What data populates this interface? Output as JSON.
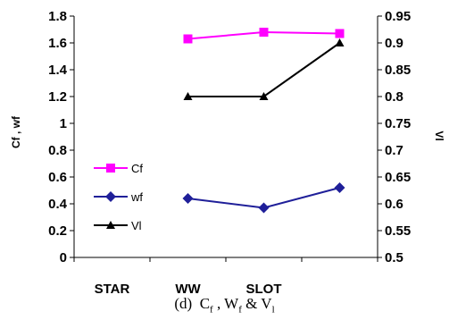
{
  "chart_data": {
    "type": "line",
    "categories": [
      "STAR",
      "WW",
      "SLOT",
      ""
    ],
    "y_left": {
      "label": "Cf , wf",
      "ylim": [
        0,
        1.8
      ],
      "ticks": [
        "0",
        "0.2",
        "0.4",
        "0.6",
        "0.8",
        "1",
        "1.2",
        "1.4",
        "1.6",
        "1.8"
      ]
    },
    "y_right": {
      "label": "Vl",
      "ylim": [
        0.5,
        0.95
      ],
      "ticks": [
        "0.5",
        "0.55",
        "0.6",
        "0.65",
        "0.7",
        "0.75",
        "0.8",
        "0.85",
        "0.9",
        "0.95"
      ]
    },
    "series": [
      {
        "name": "Cf",
        "axis": "left",
        "color": "#ff00ff",
        "marker": "square",
        "values": [
          null,
          1.63,
          1.68,
          1.67
        ]
      },
      {
        "name": "wf",
        "axis": "left",
        "color": "#1f1f99",
        "marker": "diamond",
        "values": [
          null,
          0.44,
          0.37,
          0.52
        ]
      },
      {
        "name": "Vl",
        "axis": "right",
        "color": "#000000",
        "marker": "triangle",
        "values": [
          null,
          0.8,
          0.8,
          0.9
        ]
      }
    ],
    "legend_position": "left-inside",
    "grid": false
  },
  "caption": {
    "prefix": "(d)",
    "parts": [
      {
        "text": "C",
        "sub": "f"
      },
      {
        "text": " , W",
        "sub": "f"
      },
      {
        "text": " & V",
        "sub": "l"
      }
    ]
  }
}
